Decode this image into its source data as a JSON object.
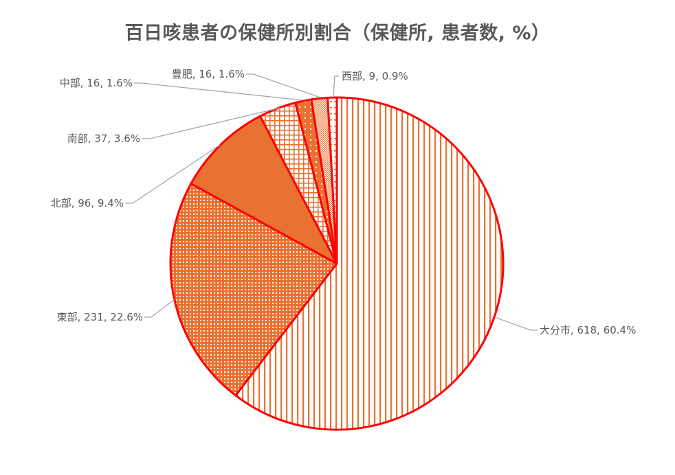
{
  "chart_data": {
    "type": "pie",
    "title": "百日咳患者の保健所別割合（保健所, 患者数, %）",
    "start_angle_deg": 0,
    "direction": "clockwise",
    "categories": [
      "大分市",
      "東部",
      "北部",
      "南部",
      "中部",
      "豊肥",
      "西部"
    ],
    "values": [
      618,
      231,
      96,
      37,
      16,
      16,
      9
    ],
    "percentages": [
      60.4,
      22.6,
      9.4,
      3.6,
      1.6,
      1.6,
      0.9
    ],
    "labels": [
      "大分市, 618, 60.4%",
      "東部, 231, 22.6%",
      "北部, 96, 9.4%",
      "南部, 37, 3.6%",
      "中部, 16, 1.6%",
      "豊肥, 16, 1.6%",
      "西部, 9, 0.9%"
    ],
    "patterns": [
      "vertical-lines",
      "dense-dots",
      "solid",
      "grid",
      "sparse-dots",
      "fine-checker",
      "dashed-horizontal"
    ],
    "legend": "none",
    "data_labels": "outside with leader lines"
  },
  "colors": {
    "fill": "#E97132",
    "border": "#FF0000",
    "leader": "#A6A6A6",
    "text": "#595959"
  }
}
